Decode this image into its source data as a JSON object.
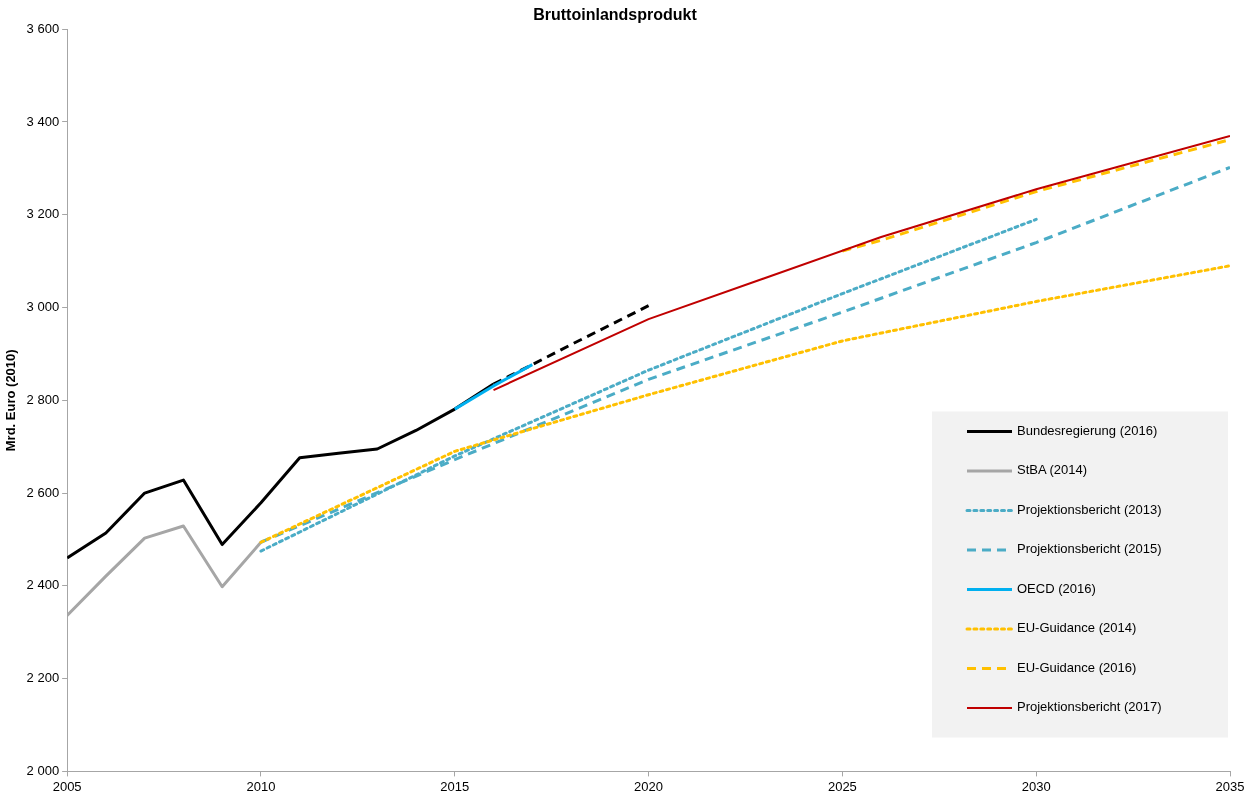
{
  "chart_data": {
    "type": "line",
    "title": "Bruttoinlandsprodukt",
    "ylabel": "Mrd. Euro (2010)",
    "xlim": [
      2005,
      2035
    ],
    "xticks": [
      2005,
      2010,
      2015,
      2020,
      2025,
      2030,
      2035
    ],
    "ylim": [
      2000,
      3600
    ],
    "yticks": [
      {
        "value": 2000,
        "label": "2 000"
      },
      {
        "value": 2200,
        "label": "2 200"
      },
      {
        "value": 2400,
        "label": "2 400"
      },
      {
        "value": 2600,
        "label": "2 600"
      },
      {
        "value": 2800,
        "label": "2 800"
      },
      {
        "value": 3000,
        "label": "3 000"
      },
      {
        "value": 3200,
        "label": "3 200"
      },
      {
        "value": 3400,
        "label": "3 400"
      },
      {
        "value": 3600,
        "label": "3 600"
      }
    ],
    "grid": false,
    "legend": "bottom right",
    "marker": "none",
    "series": [
      {
        "name": "Bundesregierung (2016)",
        "color": "#000000",
        "line_style": "solid",
        "x": [
          2005,
          2006,
          2007,
          2008,
          2009,
          2010,
          2011,
          2012,
          2013,
          2014,
          2015,
          2016
        ],
        "values": [
          2460,
          2514,
          2600,
          2628,
          2489,
          2579,
          2676,
          2686,
          2695,
          2735,
          2781,
          2835
        ]
      },
      {
        "color": "#000000",
        "line_style": "dashed",
        "x": [
          2016,
          2017,
          2018,
          2019,
          2020
        ],
        "values": [
          2835,
          2877,
          2920,
          2962,
          3004
        ]
      },
      {
        "name": "StBA (2014)",
        "color": "#a6a6a6",
        "line_style": "solid",
        "x": [
          2005,
          2006,
          2007,
          2008,
          2009,
          2010
        ],
        "values": [
          2336,
          2421,
          2503,
          2529,
          2398,
          2494
        ]
      },
      {
        "name": "Projektionsbericht (2013)",
        "color": "#4bacc6",
        "line_style": "dotted",
        "x": [
          2010,
          2015,
          2020,
          2025,
          2030
        ],
        "values": [
          2475,
          2680,
          2865,
          3030,
          3190
        ]
      },
      {
        "name": "Projektionsbericht (2015)",
        "color": "#4bacc6",
        "line_style": "dashed",
        "x": [
          2010,
          2015,
          2020,
          2025,
          2030,
          2035
        ],
        "values": [
          2494,
          2672,
          2845,
          2990,
          3140,
          3302
        ]
      },
      {
        "name": "OECD (2016)",
        "color": "#00b0f0",
        "line_style": "solid",
        "x": [
          2015,
          2016,
          2017
        ],
        "values": [
          2781,
          2831,
          2877
        ]
      },
      {
        "name": "EU-Guidance (2014)",
        "color": "#ffc000",
        "line_style": "dotted",
        "x": [
          2010,
          2015,
          2020,
          2025,
          2030,
          2035
        ],
        "values": [
          2494,
          2690,
          2812,
          2928,
          3013,
          3090
        ]
      },
      {
        "name": "EU-Guidance (2016)",
        "color": "#ffc000",
        "line_style": "dashed",
        "x": [
          2025,
          2026,
          2030,
          2035
        ],
        "values": [
          3122,
          3145,
          3250,
          3362
        ]
      },
      {
        "name": "Projektionsbericht (2017)",
        "color": "#c00000",
        "line_style": "solid",
        "x": [
          2016,
          2020,
          2026,
          2030,
          2035
        ],
        "values": [
          2822,
          2975,
          3152,
          3255,
          3370
        ]
      }
    ]
  }
}
